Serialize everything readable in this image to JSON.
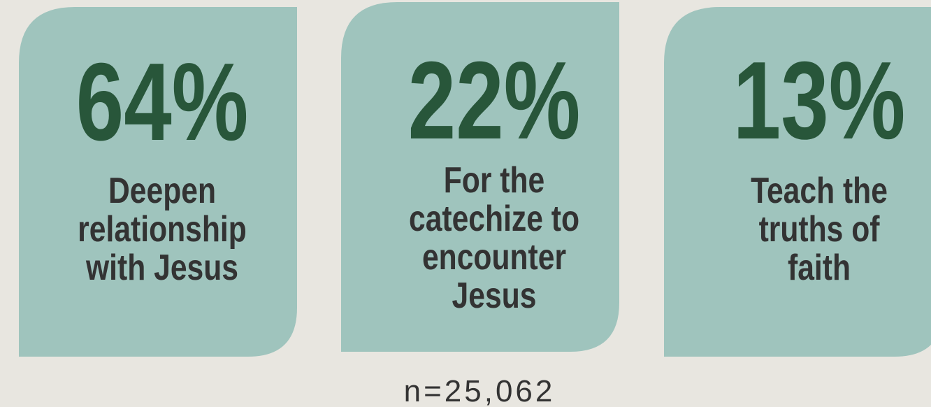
{
  "cards": [
    {
      "value": "64%",
      "label": [
        "Deepen",
        "relationship",
        "with Jesus"
      ]
    },
    {
      "value": "22%",
      "label": [
        "For the",
        "catechize to",
        "encounter",
        "Jesus"
      ]
    },
    {
      "value": "13%",
      "label": [
        "Teach the",
        "truths of",
        "faith"
      ]
    }
  ],
  "note": "n=25,062"
}
